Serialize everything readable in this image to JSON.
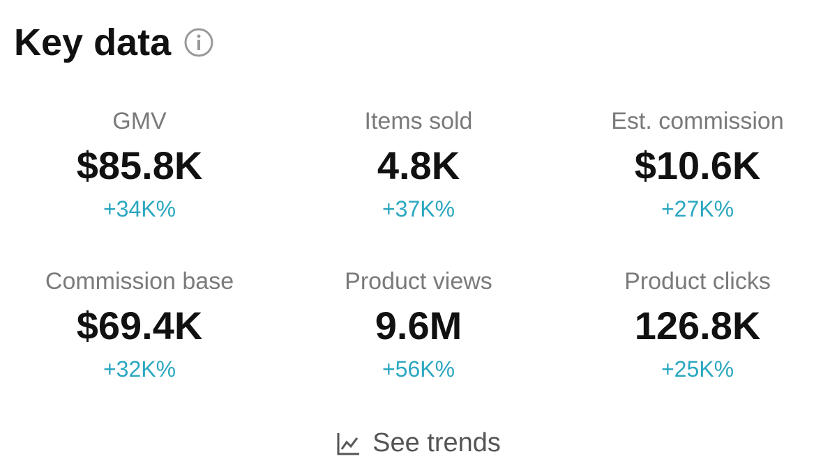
{
  "header": {
    "title": "Key data"
  },
  "metrics": [
    {
      "label": "GMV",
      "value": "$85.8K",
      "change": "+34K%"
    },
    {
      "label": "Items sold",
      "value": "4.8K",
      "change": "+37K%"
    },
    {
      "label": "Est. commission",
      "value": "$10.6K",
      "change": "+27K%"
    },
    {
      "label": "Commission base",
      "value": "$69.4K",
      "change": "+32K%"
    },
    {
      "label": "Product views",
      "value": "9.6M",
      "change": "+56K%"
    },
    {
      "label": "Product clicks",
      "value": "126.8K",
      "change": "+25K%"
    }
  ],
  "footer": {
    "link": "See trends"
  }
}
